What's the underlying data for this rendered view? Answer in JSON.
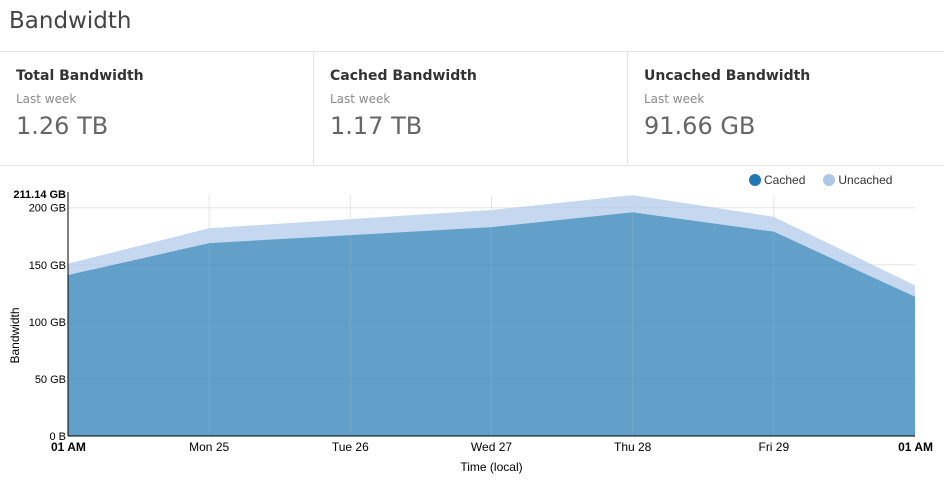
{
  "page": {
    "title": "Bandwidth"
  },
  "stats": [
    {
      "title": "Total Bandwidth",
      "subtitle": "Last week",
      "value": "1.26 TB"
    },
    {
      "title": "Cached Bandwidth",
      "subtitle": "Last week",
      "value": "1.17 TB"
    },
    {
      "title": "Uncached Bandwidth",
      "subtitle": "Last week",
      "value": "91.66 GB"
    }
  ],
  "colors": {
    "cached": "#1f77b4",
    "uncached": "#aec7e8"
  },
  "chart_data": {
    "type": "area",
    "stacked": true,
    "xlabel": "Time (local)",
    "ylabel": "Bandwidth",
    "x": [
      "01 AM",
      "Mon 25",
      "Tue 26",
      "Wed 27",
      "Thu 28",
      "Fri 29",
      "01 AM"
    ],
    "x_bold": [
      true,
      false,
      false,
      false,
      false,
      false,
      true
    ],
    "ylim": [
      0,
      211.14
    ],
    "yticks": [
      {
        "value": 0,
        "label": "0 B"
      },
      {
        "value": 50,
        "label": "50 GB"
      },
      {
        "value": 100,
        "label": "100 GB"
      },
      {
        "value": 150,
        "label": "150 GB"
      },
      {
        "value": 200,
        "label": "200 GB"
      },
      {
        "value": 211.14,
        "label": "211.14 GB",
        "bold": true
      }
    ],
    "grid": true,
    "legend": "top-right",
    "series": [
      {
        "name": "Cached",
        "values": [
          141,
          169,
          176,
          183,
          196,
          179,
          122
        ]
      },
      {
        "name": "Uncached",
        "values": [
          10,
          13,
          14,
          15,
          15,
          13,
          10
        ]
      }
    ]
  }
}
